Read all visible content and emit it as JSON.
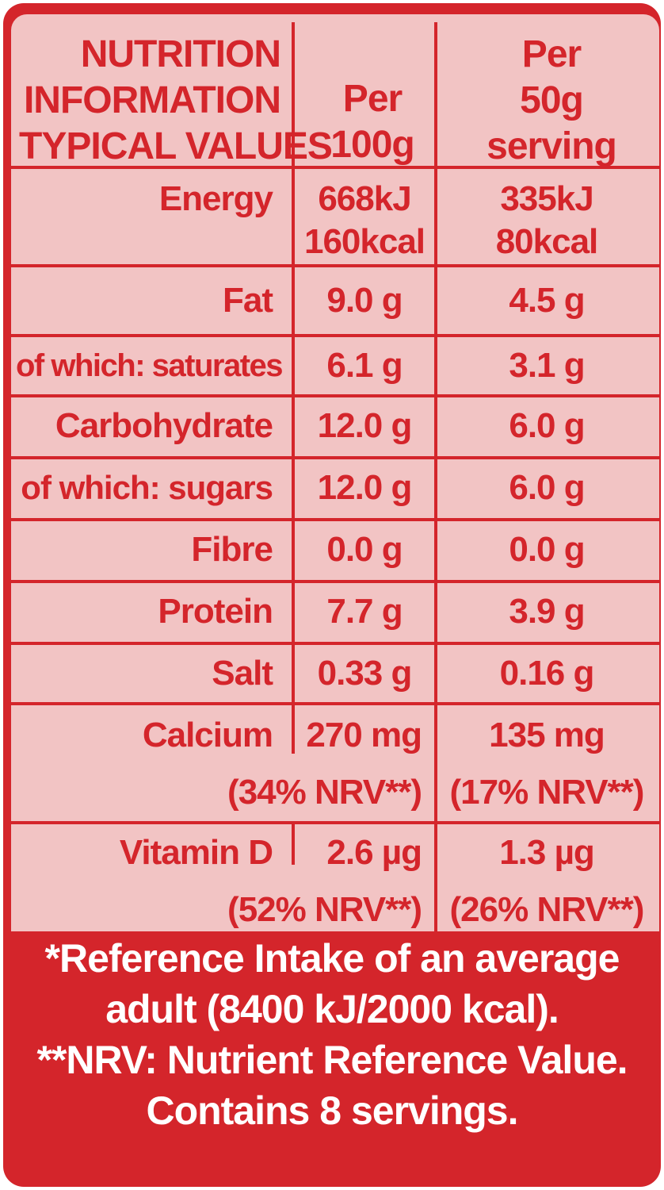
{
  "header": {
    "col1": [
      "NUTRITION",
      "INFORMATION",
      "TYPICAL VALUES"
    ],
    "col2": [
      "Per",
      "100g"
    ],
    "col3": [
      "Per",
      "50g",
      "serving"
    ]
  },
  "rows": [
    {
      "name": "Energy",
      "per100": [
        "668kJ",
        "160kcal"
      ],
      "perServing": [
        "335kJ",
        "80kcal"
      ]
    },
    {
      "name": "Fat",
      "per100": [
        "9.0 g"
      ],
      "perServing": [
        "4.5 g"
      ]
    },
    {
      "name": "of which: saturates",
      "per100": [
        "6.1 g"
      ],
      "perServing": [
        "3.1 g"
      ]
    },
    {
      "name": "Carbohydrate",
      "per100": [
        "12.0 g"
      ],
      "perServing": [
        "6.0 g"
      ]
    },
    {
      "name": "of which: sugars",
      "per100": [
        "12.0 g"
      ],
      "perServing": [
        "6.0 g"
      ]
    },
    {
      "name": "Fibre",
      "per100": [
        "0.0 g"
      ],
      "perServing": [
        "0.0 g"
      ]
    },
    {
      "name": "Protein",
      "per100": [
        "7.7 g"
      ],
      "perServing": [
        "3.9 g"
      ]
    },
    {
      "name": "Salt",
      "per100": [
        "0.33 g"
      ],
      "perServing": [
        "0.16 g"
      ]
    },
    {
      "name": "Calcium",
      "per100": [
        "270 mg",
        "(34% NRV**)"
      ],
      "perServing": [
        "135 mg",
        "(17% NRV**)"
      ]
    },
    {
      "name": "Vitamin D",
      "per100": [
        "2.6 µg",
        "(52% NRV**)"
      ],
      "perServing": [
        "1.3 µg",
        "(26% NRV**)"
      ]
    }
  ],
  "footer": [
    "*Reference Intake of an average",
    "adult (8400 kJ/2000 kcal).",
    "**NRV: Nutrient Reference Value.",
    "Contains 8 servings."
  ],
  "colors": {
    "red": "#d4252b",
    "pink": "#f2c4c4",
    "white": "#ffffff"
  }
}
